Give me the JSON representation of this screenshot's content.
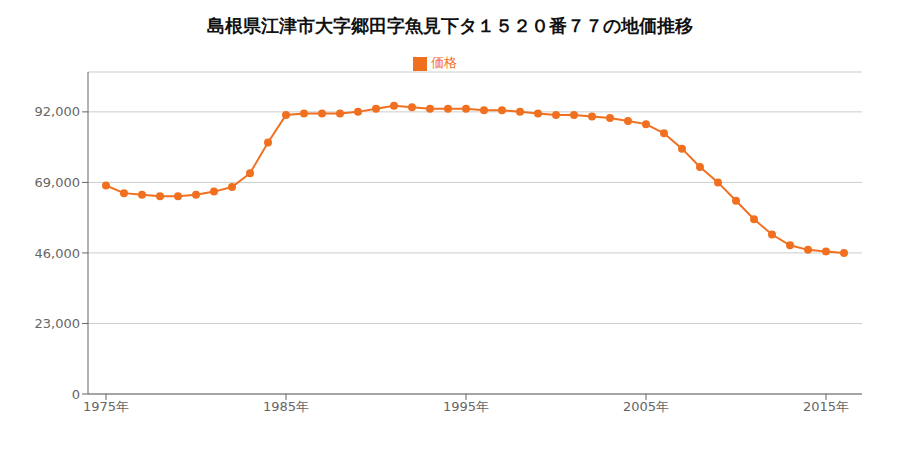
{
  "chart_data": {
    "type": "line",
    "title": "島根県江津市大字郷田字魚見下タ１５２０番７７の地価推移",
    "x": [
      1975,
      1976,
      1977,
      1978,
      1979,
      1980,
      1981,
      1982,
      1983,
      1984,
      1985,
      1986,
      1987,
      1988,
      1989,
      1990,
      1991,
      1992,
      1993,
      1994,
      1995,
      1996,
      1997,
      1998,
      1999,
      2000,
      2001,
      2002,
      2003,
      2004,
      2005,
      2006,
      2007,
      2008,
      2009,
      2010,
      2011,
      2012,
      2013,
      2014,
      2015,
      2016
    ],
    "series": [
      {
        "name": "価格",
        "color": "#f07020",
        "marker": "circle",
        "values": [
          68000,
          65500,
          65000,
          64500,
          64500,
          65000,
          66000,
          67500,
          72000,
          82000,
          91000,
          91500,
          91500,
          91500,
          92000,
          93000,
          94000,
          93500,
          93000,
          93000,
          93000,
          92500,
          92500,
          92000,
          91500,
          91000,
          91000,
          90500,
          90000,
          89000,
          88000,
          85000,
          80000,
          74000,
          69000,
          63000,
          57000,
          52000,
          48500,
          47000,
          46500,
          46000
        ]
      }
    ],
    "xlim": [
      1974,
      2017
    ],
    "xticks": [
      {
        "value": 1975,
        "label": "1975年"
      },
      {
        "value": 1985,
        "label": "1985年"
      },
      {
        "value": 1995,
        "label": "1995年"
      },
      {
        "value": 2005,
        "label": "2005年"
      },
      {
        "value": 2015,
        "label": "2015年"
      }
    ],
    "ylim": [
      0,
      105000
    ],
    "yticks": [
      0,
      {
        "value": 23000,
        "label": "23,000"
      },
      {
        "value": 46000,
        "label": "46,000"
      },
      {
        "value": 69000,
        "label": "69,000"
      },
      {
        "value": 92000,
        "label": "92,000"
      }
    ],
    "grid": "y",
    "legend": "top"
  }
}
